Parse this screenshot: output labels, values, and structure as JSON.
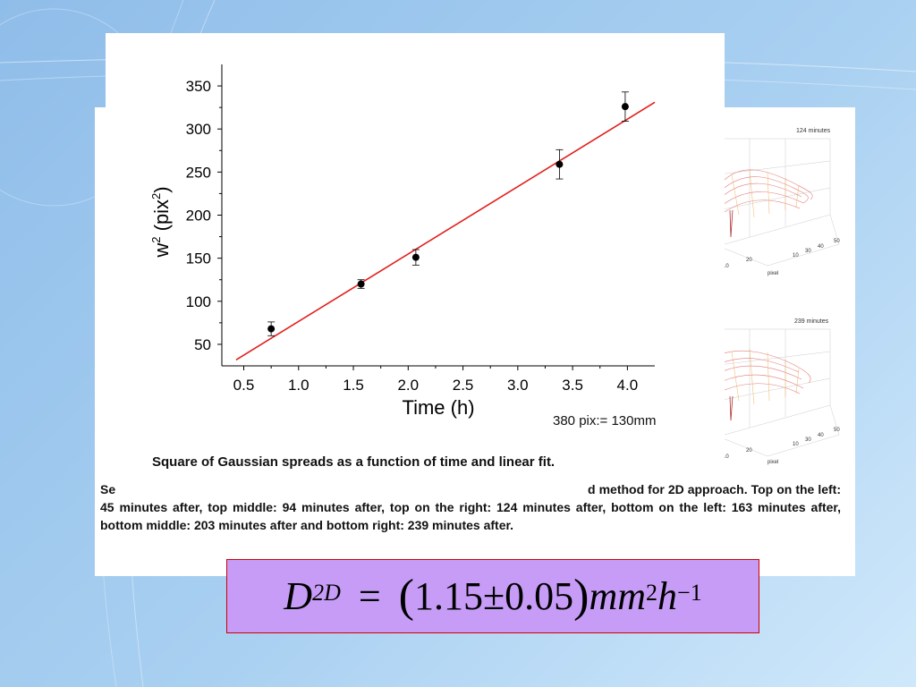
{
  "chart_data": {
    "type": "scatter",
    "title": "",
    "xlabel": "Time (h)",
    "ylabel": "w",
    "ylabel_sup": "2",
    "ylabel_unit": "(pix",
    "ylabel_unit_sup": "2",
    "ylabel_close": ")",
    "xlim": [
      0.3,
      4.25
    ],
    "ylim": [
      25,
      375
    ],
    "x_ticks": [
      0.5,
      1.0,
      1.5,
      2.0,
      2.5,
      3.0,
      3.5,
      4.0
    ],
    "x_tick_labels": [
      "0.5",
      "1.0",
      "1.5",
      "2.0",
      "2.5",
      "3.0",
      "3.5",
      "4.0"
    ],
    "y_ticks": [
      50,
      100,
      150,
      200,
      250,
      300,
      350
    ],
    "y_tick_labels": [
      "50",
      "100",
      "150",
      "200",
      "250",
      "300",
      "350"
    ],
    "series": [
      {
        "x": [
          0.75,
          1.57,
          2.07,
          3.38,
          3.98
        ],
        "y": [
          68,
          120,
          151,
          259,
          326
        ],
        "err": [
          8,
          5,
          9,
          17,
          17
        ]
      }
    ],
    "fit_line": {
      "x": [
        0.43,
        4.25
      ],
      "y": [
        32,
        331
      ],
      "color": "#e0201e"
    },
    "grid": false,
    "legend": "none"
  },
  "chart_caption": "Square of Gaussian spreads as a function of time and linear fit.",
  "scale_note": "380 pix:= 130mm",
  "figure_caption": "Se                                                                                                                                    d method for 2D approach. Top on the left: 45 minutes after, top middle: 94 minutes after, top on the right: 124 minutes after, bottom on the left: 163 minutes after, bottom middle: 203 minutes after and bottom right: 239 minutes after.",
  "surfaces": [
    {
      "title": "124 minutes",
      "ticks_a": [
        "10",
        "20",
        "30",
        "40",
        "50"
      ],
      "ticks_b": [
        "0",
        "10",
        "20"
      ],
      "axis_label": "pixel"
    },
    {
      "title": "239 minutes",
      "ticks_a": [
        "10",
        "20",
        "30",
        "40",
        "50"
      ],
      "ticks_b": [
        "0",
        "10",
        "20"
      ],
      "axis_label": "pixel"
    }
  ],
  "formula": {
    "symbol": "D",
    "symbol_sup": "2D",
    "equals": "=",
    "open": "(",
    "value": "1.15",
    "pm": "±",
    "error": "0.05",
    "close": ")",
    "unit_m": "mm",
    "unit_m_sup": "2",
    "unit_h": "h",
    "unit_h_sup": "−1"
  },
  "colors": {
    "fit": "#e0201e",
    "formula_bg": "#c79cf7",
    "formula_border": "#d00000"
  }
}
